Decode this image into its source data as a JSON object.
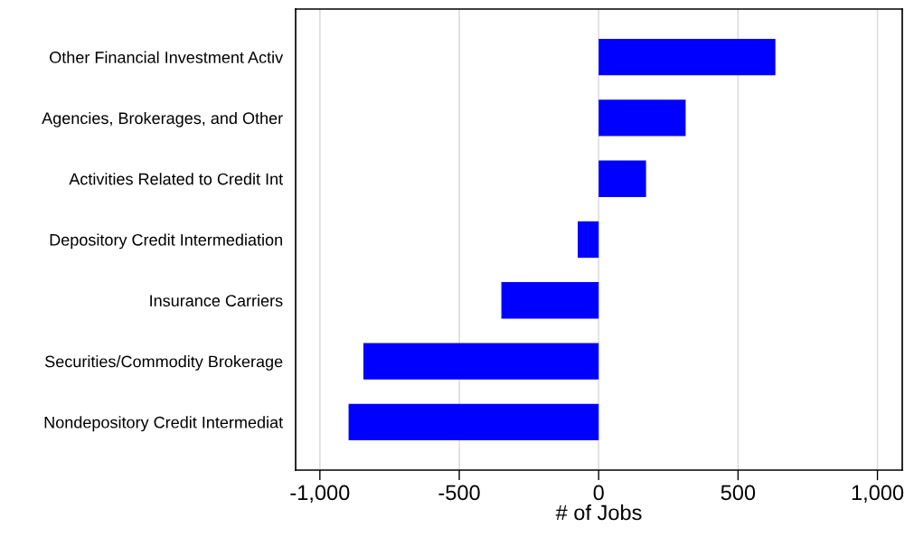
{
  "chart_data": {
    "type": "bar",
    "orientation": "horizontal",
    "xlabel": "# of Jobs",
    "categories": [
      "Other Financial Investment Activ",
      "Agencies, Brokerages, and Other",
      "Activities Related to Credit Int",
      "Depository Credit Intermediation",
      "Insurance Carriers",
      "Securities/Commodity Brokerage",
      "Nondepository Credit Intermediat"
    ],
    "values": [
      634,
      312,
      170,
      -75,
      -349,
      -844,
      -897
    ],
    "color": "#0000ff",
    "xlim": [
      -1087,
      1089
    ],
    "xticks": [
      {
        "value": -1000,
        "label": "-1,000"
      },
      {
        "value": -500,
        "label": "-500"
      },
      0,
      500,
      {
        "value": 1000,
        "label": "1,000"
      }
    ],
    "grid": "x",
    "legend": false
  }
}
